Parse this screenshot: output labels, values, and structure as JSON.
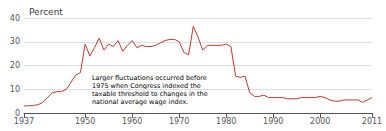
{
  "chart_data": {
    "type": "line",
    "title": "Percent",
    "x": [
      1937,
      1938,
      1939,
      1940,
      1941,
      1942,
      1943,
      1944,
      1945,
      1946,
      1947,
      1948,
      1949,
      1950,
      1951,
      1952,
      1953,
      1954,
      1955,
      1956,
      1957,
      1958,
      1959,
      1960,
      1961,
      1962,
      1963,
      1964,
      1965,
      1966,
      1967,
      1968,
      1969,
      1970,
      1971,
      1972,
      1973,
      1974,
      1975,
      1976,
      1977,
      1978,
      1979,
      1980,
      1981,
      1982,
      1983,
      1984,
      1985,
      1986,
      1987,
      1988,
      1989,
      1990,
      1991,
      1992,
      1993,
      1994,
      1995,
      1996,
      1997,
      1998,
      1999,
      2000,
      2001,
      2002,
      2003,
      2004,
      2005,
      2006,
      2007,
      2008,
      2009,
      2010,
      2011
    ],
    "values": [
      3.0,
      3.0,
      3.2,
      3.5,
      4.5,
      6.5,
      8.5,
      9.0,
      9.0,
      10.0,
      13.0,
      16.0,
      17.0,
      29.0,
      24.0,
      27.5,
      31.5,
      26.5,
      29.0,
      28.0,
      30.5,
      26.0,
      28.5,
      30.5,
      27.5,
      28.5,
      28.0,
      28.0,
      28.5,
      29.5,
      30.5,
      31.0,
      31.0,
      30.0,
      25.5,
      24.5,
      36.5,
      32.0,
      26.5,
      28.5,
      28.5,
      28.5,
      28.5,
      29.0,
      28.0,
      15.5,
      15.0,
      15.5,
      8.5,
      7.0,
      7.0,
      7.5,
      6.5,
      6.5,
      6.5,
      6.5,
      6.0,
      6.0,
      6.0,
      6.5,
      6.5,
      6.5,
      6.5,
      7.0,
      6.5,
      5.5,
      5.0,
      5.0,
      5.5,
      5.5,
      5.5,
      5.5,
      4.5,
      5.5,
      6.5
    ],
    "color": "#c0392b",
    "xlim": [
      1937,
      2011
    ],
    "xticks": [
      1937,
      1950,
      1960,
      1970,
      1980,
      1990,
      2000,
      2011
    ],
    "ylim": [
      0,
      40
    ],
    "yticks": [
      0,
      10,
      20,
      30,
      40
    ],
    "grid": true,
    "annotations": [
      "Larger fluctuations occurred before\n1975 when Congress indexed the\ntaxable threshold to changes in the\nnational average wage index."
    ]
  }
}
